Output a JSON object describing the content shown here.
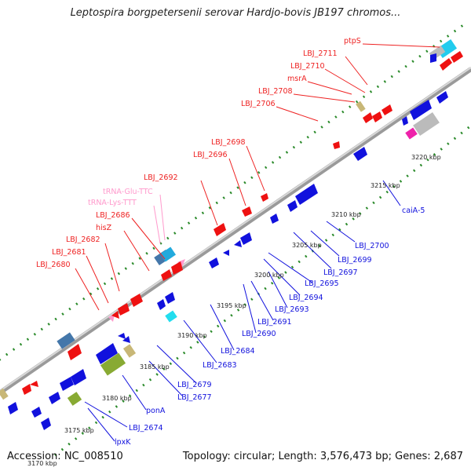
{
  "title": "Leptospira borgpetersenii serovar Hardjo-bovis JB197 chromos...",
  "footer": {
    "accession": "Accession: NC_008510",
    "topology": "Topology: circular; Length: 3,576,473 bp; Genes: 2,687"
  },
  "ticks": [
    "3170 kbp",
    "3175 kbp",
    "3180 kbp",
    "3185 kbp",
    "3190 kbp",
    "3195 kbp",
    "3200 kbp",
    "3205 kbp",
    "3210 kbp",
    "3215 kbp",
    "3220 kbp"
  ],
  "labels_top": [
    "ptpS",
    "LBJ_2711",
    "LBJ_2710",
    "msrA",
    "LBJ_2708",
    "LBJ_2706",
    "LBJ_2698",
    "LBJ_2696",
    "LBJ_2692",
    "tRNA-Glu-TTC",
    "tRNA-Lys-TTT",
    "LBJ_2686",
    "hisZ",
    "LBJ_2682",
    "LBJ_2681",
    "LBJ_2680"
  ],
  "labels_bottom": [
    "caiA-5",
    "LBJ_2700",
    "LBJ_2699",
    "LBJ_2697",
    "LBJ_2695",
    "LBJ_2694",
    "LBJ_2693",
    "LBJ_2691",
    "LBJ_2690",
    "LBJ_2684",
    "LBJ_2683",
    "LBJ_2679",
    "LBJ_2677",
    "ponA",
    "LBJ_2674",
    "lpxK"
  ],
  "colors": {
    "forward_cds": "#ee1111",
    "reverse_cds": "#1111dd",
    "trna": "#ff99cc",
    "other_a": "#88aa33",
    "other_b": "#c8b777",
    "other_c": "#2299dd",
    "gc_positive": "#2a8a2a",
    "gc_dots": "#2a8a2a",
    "backbone": "#888888"
  }
}
